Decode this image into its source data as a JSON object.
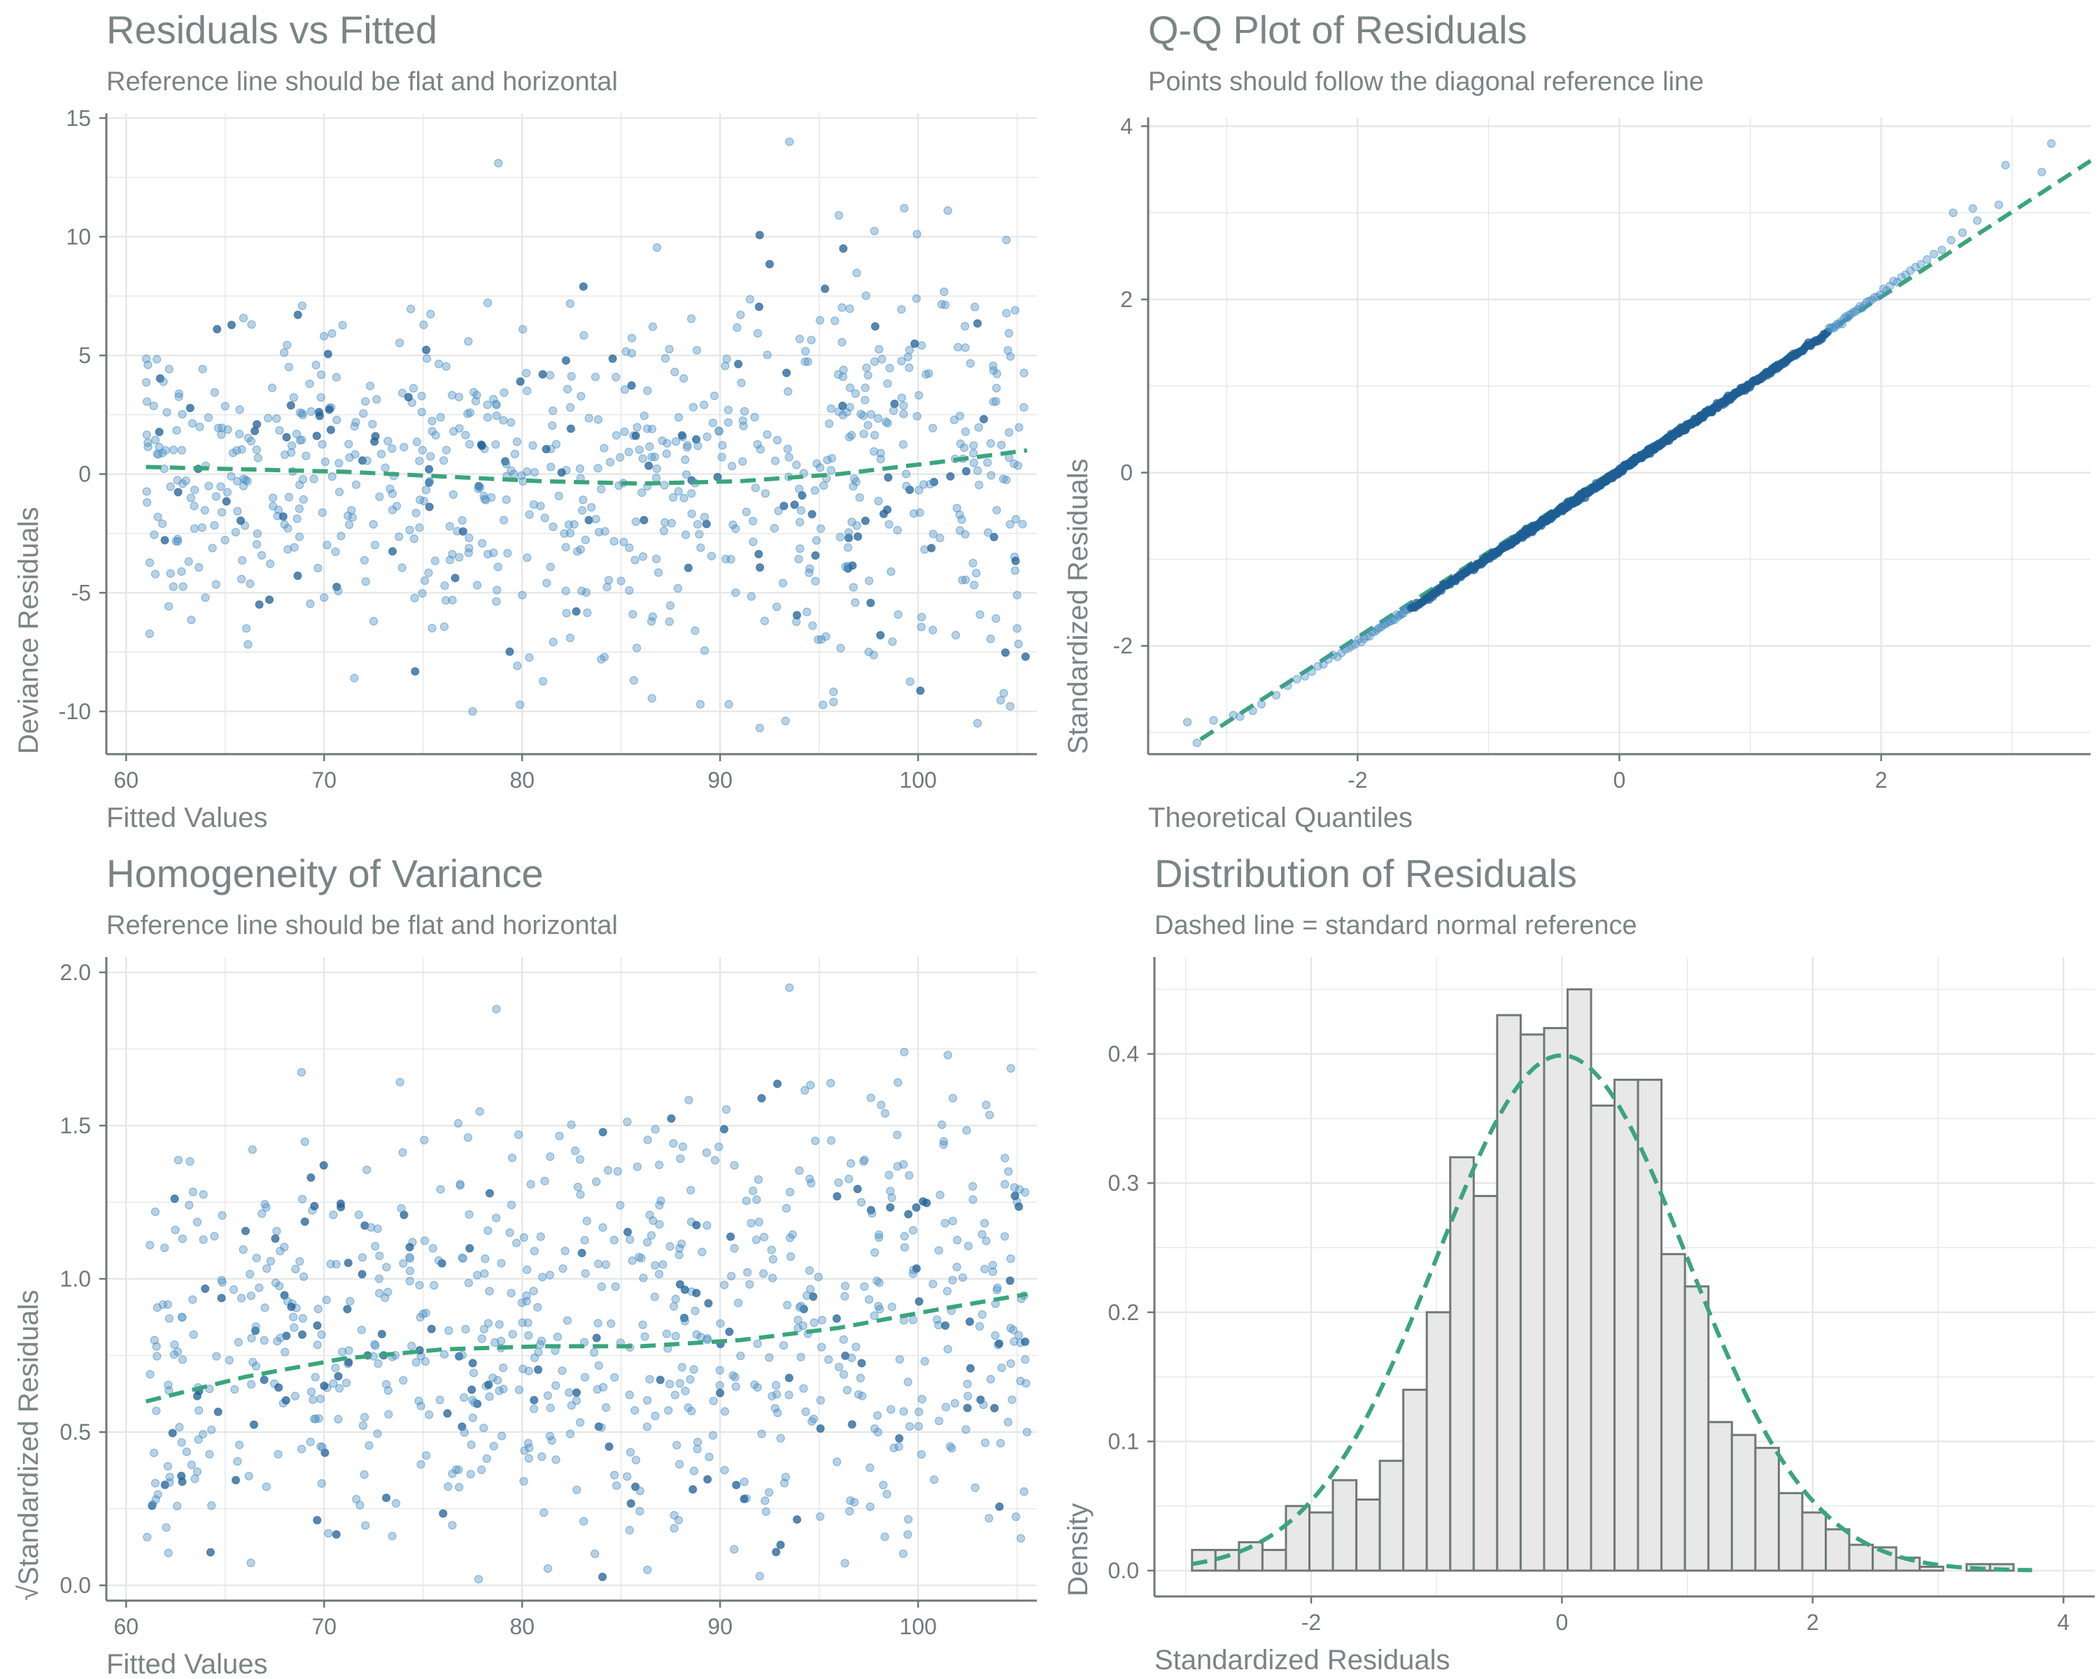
{
  "colors": {
    "point": "#4a8ec4",
    "point_dark": "#1f5f95",
    "reference_line": "#3aa57c",
    "axis": "#6f7878",
    "grid": "#e6e8e8",
    "histogram_fill": "#e8e8e8",
    "histogram_stroke": "#707878",
    "text": "#7b8484"
  },
  "chart_data": [
    {
      "type": "scatter",
      "title": "Residuals vs Fitted",
      "subtitle": "Reference line should be flat and horizontal",
      "xlabel": "Fitted Values",
      "ylabel": "Deviance Residuals",
      "xlim": [
        59,
        106
      ],
      "ylim": [
        -11.8,
        15.2
      ],
      "xticks": [
        60,
        70,
        80,
        90,
        100
      ],
      "yticks": [
        -10,
        -5,
        0,
        5,
        10,
        15
      ],
      "grid": true,
      "n_points": 800,
      "points_sample": [
        [
          61.1,
          4.6
        ],
        [
          78.8,
          13.1
        ],
        [
          93.5,
          14.0
        ],
        [
          99.3,
          11.2
        ],
        [
          101.5,
          11.1
        ],
        [
          96.0,
          10.9
        ],
        [
          104.9,
          6.9
        ],
        [
          77.5,
          -10.0
        ],
        [
          92.0,
          -10.7
        ],
        [
          93.3,
          -10.4
        ],
        [
          103.0,
          -10.5
        ],
        [
          62.0,
          1.0
        ],
        [
          70.0,
          -5.2
        ],
        [
          89.0,
          -9.7
        ],
        [
          72.5,
          -6.2
        ],
        [
          105.0,
          -5.1
        ]
      ],
      "trend": {
        "name": "",
        "x": [
          61,
          66,
          71,
          76,
          81,
          86,
          91,
          96,
          101,
          105.5
        ],
        "y": [
          0.3,
          0.2,
          0.1,
          -0.1,
          -0.3,
          -0.4,
          -0.3,
          0.0,
          0.5,
          1.0
        ]
      }
    },
    {
      "type": "scatter",
      "title": "Q-Q Plot of Residuals",
      "subtitle": "Points should follow the diagonal reference line",
      "xlabel": "Theoretical Quantiles",
      "ylabel": "Standardized Residuals",
      "xlim": [
        -3.6,
        3.6
      ],
      "ylim": [
        -3.25,
        4.1
      ],
      "xticks": [
        -2,
        0,
        2
      ],
      "yticks": [
        -2,
        0,
        2,
        4
      ],
      "grid": true,
      "n_points": 800,
      "extreme_points": [
        [
          -3.3,
          -2.88
        ],
        [
          -3.1,
          -2.86
        ],
        [
          -2.95,
          -2.8
        ],
        [
          -2.8,
          -2.75
        ],
        [
          2.55,
          3.0
        ],
        [
          2.7,
          3.05
        ],
        [
          2.95,
          3.55
        ],
        [
          3.3,
          3.8
        ]
      ],
      "reference_line": {
        "name": "",
        "x": [
          -3.2,
          3.6
        ],
        "y": [
          -3.08,
          3.6
        ]
      }
    },
    {
      "type": "scatter",
      "title": "Homogeneity of Variance",
      "subtitle": "Reference line should be flat and horizontal",
      "xlabel": "Fitted Values",
      "ylabel": "√Standardized Residuals",
      "xlim": [
        59,
        106
      ],
      "ylim": [
        -0.05,
        2.05
      ],
      "xticks": [
        60,
        70,
        80,
        90,
        100
      ],
      "yticks": [
        0.0,
        0.5,
        1.0,
        1.5,
        2.0
      ],
      "ytick_labels": [
        "0.0",
        "0.5",
        "1.0",
        "1.5",
        "2.0"
      ],
      "grid": true,
      "n_points": 800,
      "points_sample": [
        [
          78.7,
          1.88
        ],
        [
          93.5,
          1.95
        ],
        [
          99.3,
          1.74
        ],
        [
          101.5,
          1.73
        ],
        [
          61.2,
          1.11
        ],
        [
          61.5,
          0.28
        ],
        [
          77.8,
          0.02
        ],
        [
          92.0,
          0.03
        ],
        [
          105.5,
          0.5
        ]
      ],
      "trend": {
        "name": "",
        "x": [
          61,
          66,
          71,
          76,
          81,
          86,
          91,
          96,
          101,
          105.5
        ],
        "y": [
          0.6,
          0.68,
          0.74,
          0.77,
          0.78,
          0.78,
          0.8,
          0.84,
          0.9,
          0.95
        ]
      }
    },
    {
      "type": "bar",
      "title": "Distribution of Residuals",
      "subtitle": "Dashed line = standard normal reference",
      "xlabel": "Standardized Residuals",
      "ylabel": "Density",
      "xlim": [
        -3.25,
        4.25
      ],
      "ylim": [
        -0.02,
        0.475
      ],
      "xticks": [
        -2,
        0,
        2,
        4
      ],
      "yticks": [
        0.0,
        0.1,
        0.2,
        0.3,
        0.4
      ],
      "ytick_labels": [
        "0.0",
        "0.1",
        "0.2",
        "0.3",
        "0.4"
      ],
      "grid": true,
      "bin_start": -2.95,
      "bin_width": 0.1872,
      "densities": [
        0.016,
        0.016,
        0.022,
        0.016,
        0.05,
        0.045,
        0.07,
        0.055,
        0.085,
        0.14,
        0.2,
        0.32,
        0.29,
        0.43,
        0.415,
        0.42,
        0.45,
        0.36,
        0.38,
        0.38,
        0.245,
        0.22,
        0.115,
        0.105,
        0.095,
        0.06,
        0.045,
        0.032,
        0.02,
        0.018,
        0.01,
        0.003,
        0.0,
        0.005,
        0.005
      ],
      "normal_curve": {
        "name": "",
        "from": -2.95,
        "to": 3.75
      }
    }
  ]
}
